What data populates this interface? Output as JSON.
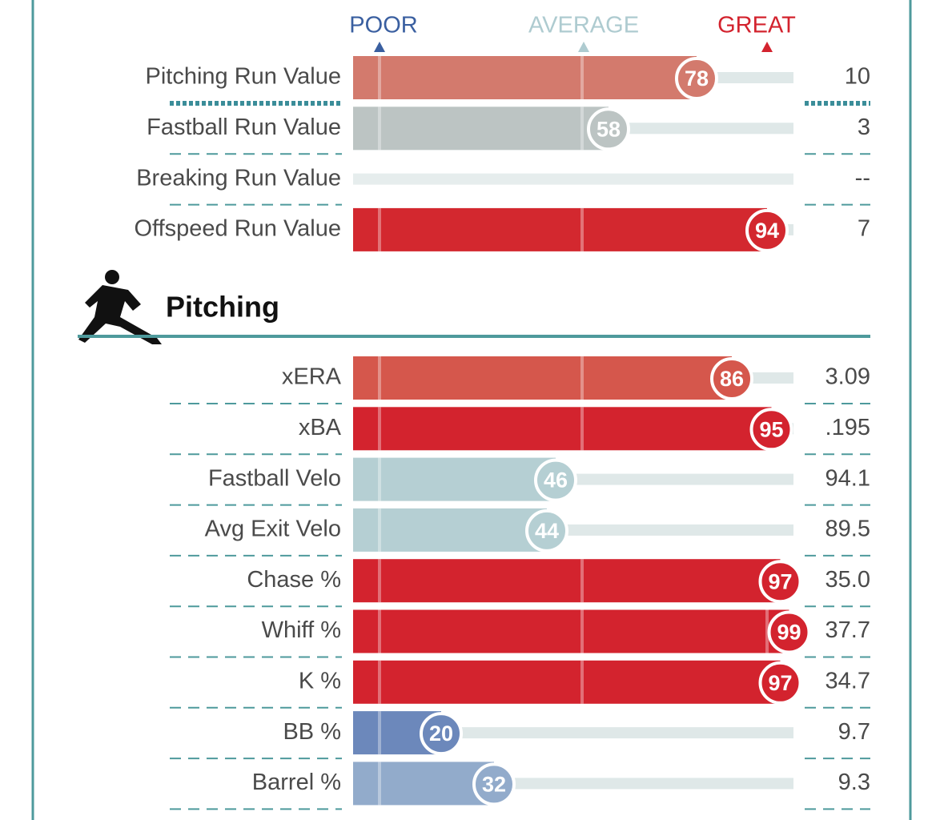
{
  "scale": {
    "poor": "POOR",
    "average": "AVERAGE",
    "great": "GREAT"
  },
  "run_values": {
    "rows": [
      {
        "label": "Pitching Run Value",
        "percentile": 78,
        "value": "10",
        "color": "#d37a6d"
      },
      {
        "label": "Fastball Run Value",
        "percentile": 58,
        "value": "3",
        "color": "#bcc4c3"
      },
      {
        "label": "Breaking Run Value",
        "percentile": null,
        "value": "--",
        "color": "#e6eded"
      },
      {
        "label": "Offspeed Run Value",
        "percentile": 94,
        "value": "7",
        "color": "#d3282f"
      }
    ]
  },
  "pitching": {
    "title": "Pitching",
    "rows": [
      {
        "label": "xERA",
        "percentile": 86,
        "value": "3.09",
        "color": "#d5574c"
      },
      {
        "label": "xBA",
        "percentile": 95,
        "value": ".195",
        "color": "#d3232e"
      },
      {
        "label": "Fastball Velo",
        "percentile": 46,
        "value": "94.1",
        "color": "#b5cfd3"
      },
      {
        "label": "Avg Exit Velo",
        "percentile": 44,
        "value": "89.5",
        "color": "#b5cfd3"
      },
      {
        "label": "Chase %",
        "percentile": 97,
        "value": "35.0",
        "color": "#d3232e"
      },
      {
        "label": "Whiff %",
        "percentile": 99,
        "value": "37.7",
        "color": "#d3232e"
      },
      {
        "label": "K %",
        "percentile": 97,
        "value": "34.7",
        "color": "#d3232e"
      },
      {
        "label": "BB %",
        "percentile": 20,
        "value": "9.7",
        "color": "#6c88bb"
      },
      {
        "label": "Barrel %",
        "percentile": 32,
        "value": "9.3",
        "color": "#92abcb"
      }
    ]
  }
}
